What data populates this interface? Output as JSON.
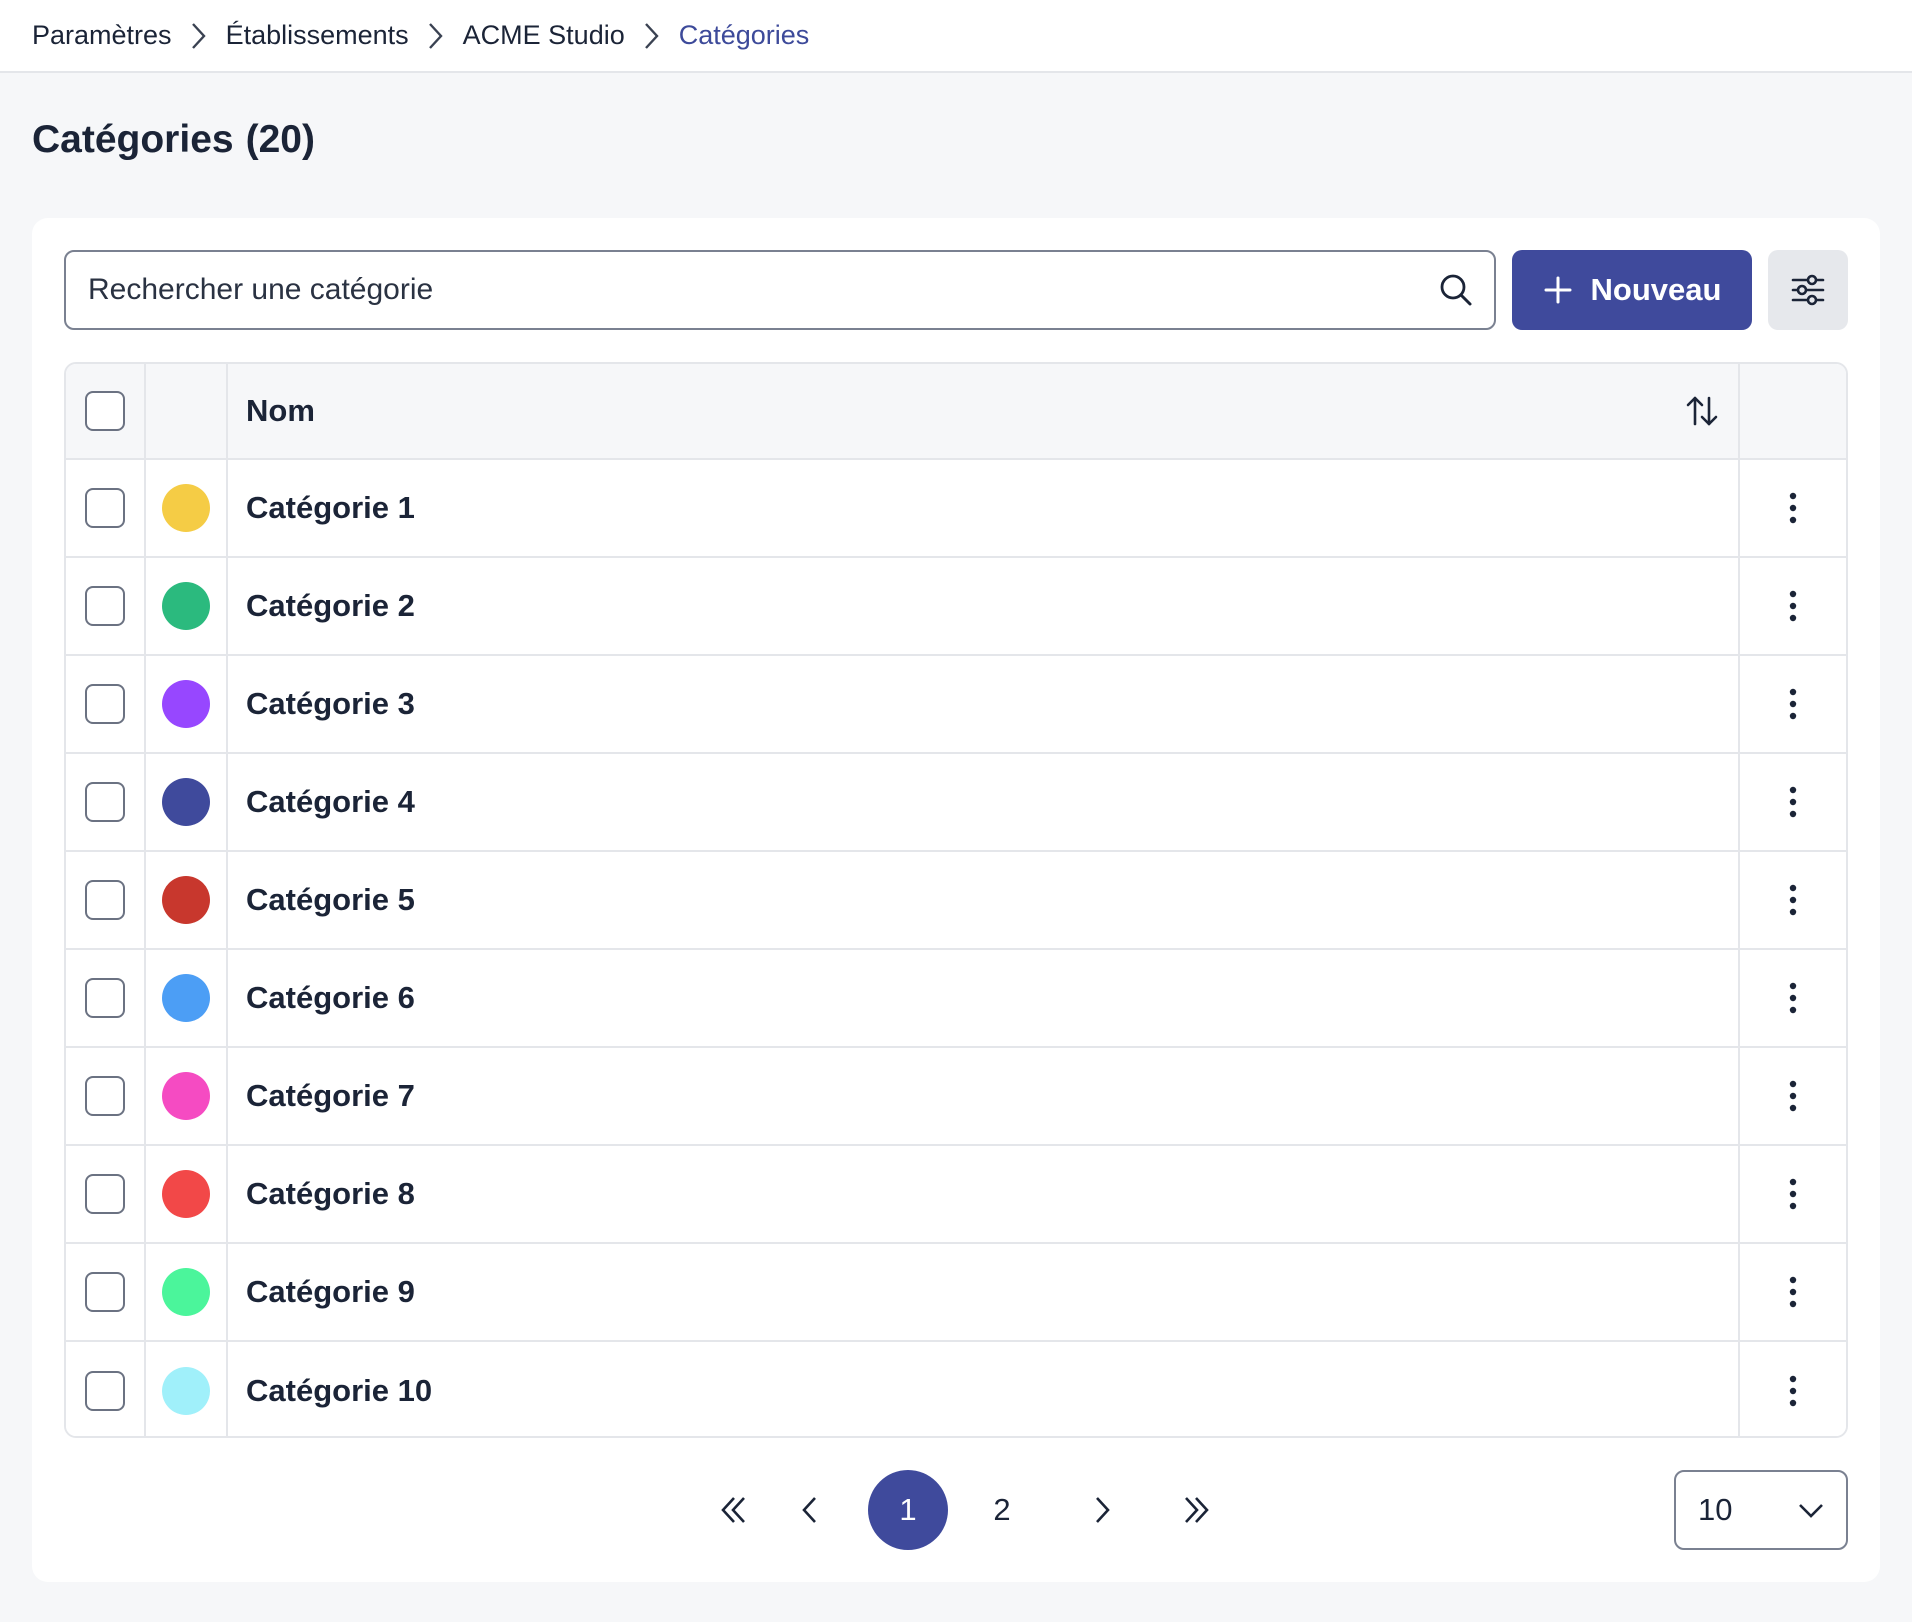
{
  "breadcrumb": {
    "items": [
      "Paramètres",
      "Établissements",
      "ACME Studio",
      "Catégories"
    ]
  },
  "page": {
    "title": "Catégories",
    "count": "(20)"
  },
  "search": {
    "placeholder": "Rechercher une catégorie",
    "value": ""
  },
  "toolbar": {
    "new_label": "Nouveau",
    "filter_icon": "sliders-icon"
  },
  "table": {
    "columns": [
      "Nom"
    ],
    "rows": [
      {
        "name": "Catégorie 1",
        "color": "#f5cc45"
      },
      {
        "name": "Catégorie 2",
        "color": "#2bba7e"
      },
      {
        "name": "Catégorie 3",
        "color": "#9747ff"
      },
      {
        "name": "Catégorie 4",
        "color": "#3f4a9c"
      },
      {
        "name": "Catégorie 5",
        "color": "#c8372d"
      },
      {
        "name": "Catégorie 6",
        "color": "#4c9ef5"
      },
      {
        "name": "Catégorie 7",
        "color": "#f54bc2"
      },
      {
        "name": "Catégorie 8",
        "color": "#f24848"
      },
      {
        "name": "Catégorie 9",
        "color": "#4bf59b"
      },
      {
        "name": "Catégorie 10",
        "color": "#a0f0fa"
      }
    ]
  },
  "pagination": {
    "pages": [
      "1",
      "2"
    ],
    "current": "1",
    "per_page": "10"
  },
  "colors": {
    "accent": "#3f4a9c",
    "breadcrumb_current": "#3d4a9a"
  }
}
